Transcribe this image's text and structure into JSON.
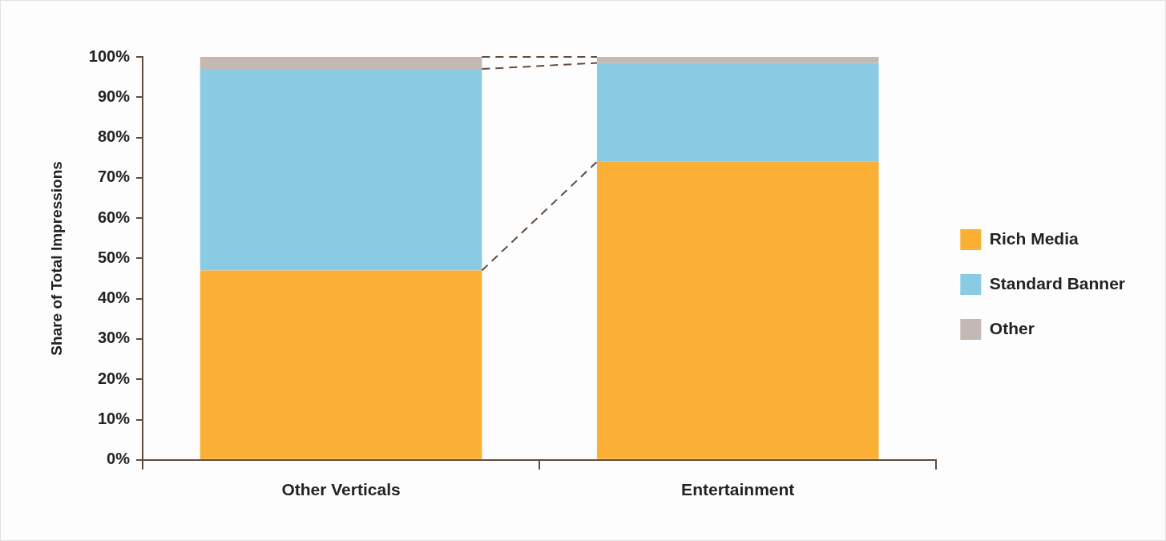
{
  "chart_data": {
    "type": "bar",
    "stacked": true,
    "ylabel": "Share of Total Impressions",
    "categories": [
      "Other Verticals",
      "Entertainment"
    ],
    "series": [
      {
        "name": "Rich Media",
        "color": "#fbaf34",
        "values": [
          47,
          74
        ]
      },
      {
        "name": "Standard Banner",
        "color": "#89cbe2",
        "values": [
          50,
          24.5
        ]
      },
      {
        "name": "Other",
        "color": "#c4b8b2",
        "values": [
          3,
          1.5
        ]
      }
    ],
    "ylim": [
      0,
      100
    ],
    "yticks": [
      {
        "value": 0,
        "label": "0%"
      },
      {
        "value": 10,
        "label": "10%"
      },
      {
        "value": 20,
        "label": "20%"
      },
      {
        "value": 30,
        "label": "30%"
      },
      {
        "value": 40,
        "label": "40%"
      },
      {
        "value": 50,
        "label": "50%"
      },
      {
        "value": 60,
        "label": "60%"
      },
      {
        "value": 70,
        "label": "70%"
      },
      {
        "value": 80,
        "label": "80%"
      },
      {
        "value": 90,
        "label": "90%"
      },
      {
        "value": 100,
        "label": "100%"
      }
    ],
    "grid": false,
    "legend": "right"
  }
}
